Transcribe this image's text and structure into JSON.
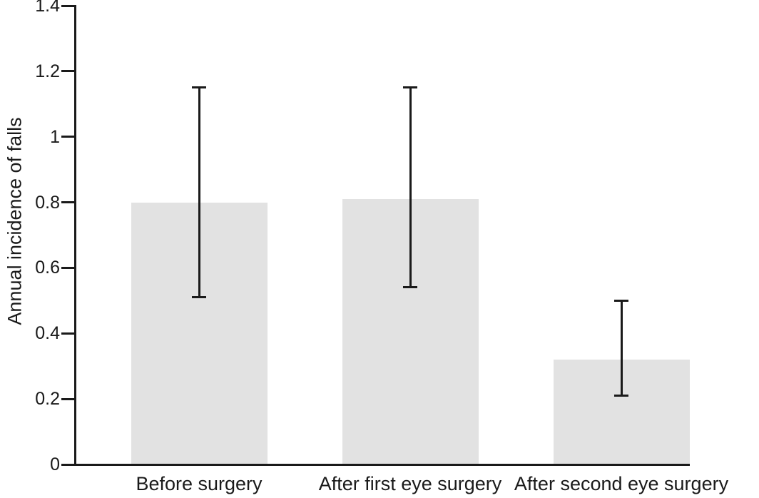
{
  "chart_data": {
    "type": "bar",
    "title": "",
    "ylabel": "Annual incidence of falls",
    "xlabel": "",
    "categories": [
      "Before surgery",
      "After first eye surgery",
      "After second eye surgery"
    ],
    "values": [
      0.8,
      0.81,
      0.32
    ],
    "error_bars": [
      {
        "low": 0.51,
        "high": 1.15
      },
      {
        "low": 0.54,
        "high": 1.15
      },
      {
        "low": 0.21,
        "high": 0.5
      }
    ],
    "ylim": [
      0,
      1.4
    ],
    "yticks": [
      0,
      0.2,
      0.4,
      0.6,
      0.8,
      1,
      1.2,
      1.4
    ],
    "ytick_labels": [
      "0",
      "0.2",
      "0.4",
      "0.6",
      "0.8",
      "1",
      "1.2",
      "1.4"
    ],
    "grid": false,
    "legend": "none",
    "colors": {
      "bar_fill": "#e2e2e2",
      "axis": "#1a1a1a",
      "text": "#1a1a1a",
      "background": "#ffffff"
    }
  }
}
